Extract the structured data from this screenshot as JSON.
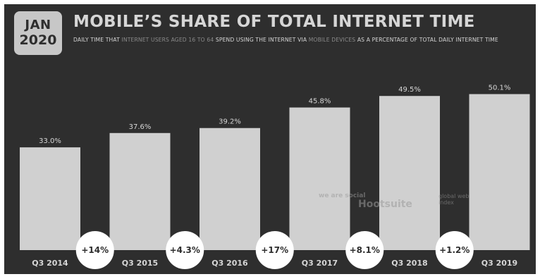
{
  "header": {
    "date_month": "JAN",
    "date_year": "2020",
    "title": "MOBILE’S SHARE OF TOTAL INTERNET TIME",
    "subtitle_parts": {
      "p1": "DAILY TIME THAT ",
      "p2": "INTERNET USERS AGED 16 TO 64",
      "p3": " SPEND USING THE INTERNET VIA ",
      "p4": "MOBILE DEVICES",
      "p5": " AS A PERCENTAGE OF TOTAL DAILY INTERNET TIME"
    }
  },
  "watermark": {
    "we_are_social": "we are social",
    "hootsuite": "Hootsuite",
    "gwi": "global web index"
  },
  "colors": {
    "background": "#2e2e2e",
    "bar": "#d0d0d0",
    "text": "#d6d6d6",
    "circle": "#ffffff",
    "circle_text": "#2e2e2e"
  },
  "chart_data": {
    "type": "bar",
    "title": "MOBILE’S SHARE OF TOTAL INTERNET TIME",
    "categories": [
      "Q3 2014",
      "Q3 2015",
      "Q3 2016",
      "Q3 2017",
      "Q3 2018",
      "Q3 2019"
    ],
    "values": [
      33.0,
      37.6,
      39.2,
      45.8,
      49.5,
      50.1
    ],
    "value_labels": [
      "33.0%",
      "37.6%",
      "39.2%",
      "45.8%",
      "49.5%",
      "50.1%"
    ],
    "changes": [
      "+14%",
      "+4.3%",
      "+17%",
      "+8.1%",
      "+1.2%"
    ],
    "unit": "%",
    "ylim": [
      0,
      60
    ],
    "grid": false,
    "legend": "none"
  }
}
